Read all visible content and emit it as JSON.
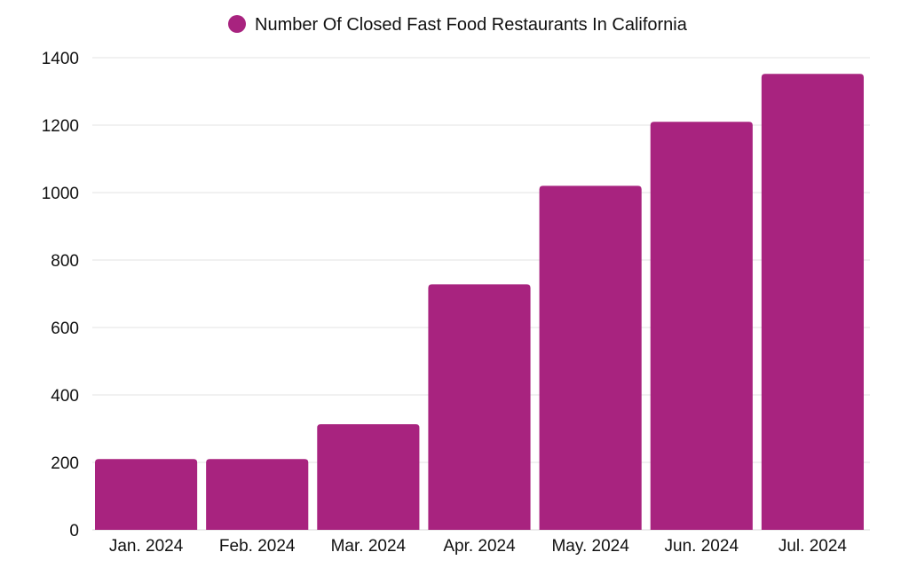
{
  "chart_data": {
    "type": "bar",
    "title": "",
    "xlabel": "",
    "ylabel": "",
    "legend": {
      "position": "top-center",
      "entries": [
        "Number Of Closed Fast Food Restaurants In California"
      ]
    },
    "categories": [
      "Jan. 2024",
      "Feb. 2024",
      "Mar. 2024",
      "Apr. 2024",
      "May. 2024",
      "Jun. 2024",
      "Jul. 2024"
    ],
    "series": [
      {
        "name": "Number Of Closed Fast Food Restaurants In California",
        "values": [
          210,
          210,
          313,
          728,
          1020,
          1210,
          1352
        ],
        "color": "#a8237f"
      }
    ],
    "ylim": [
      0,
      1400
    ],
    "yticks": [
      0,
      200,
      400,
      600,
      800,
      1000,
      1200,
      1400
    ],
    "grid": true
  }
}
